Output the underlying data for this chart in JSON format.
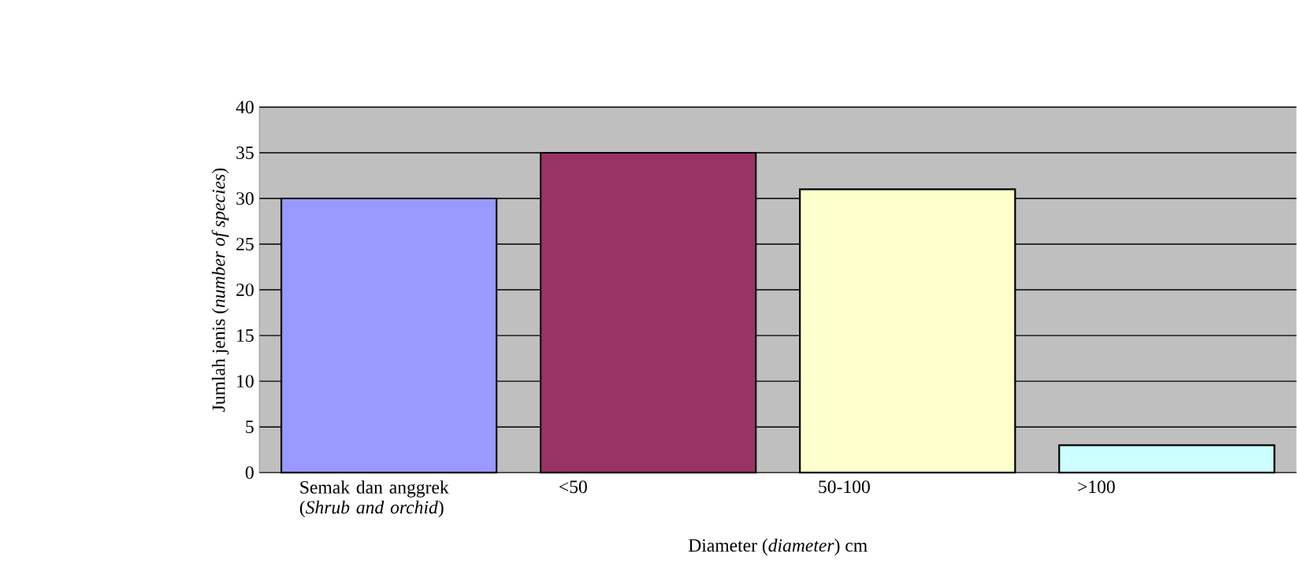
{
  "chart_data": {
    "type": "bar",
    "xlabel": "Diameter (*diameter*) cm",
    "ylabel": "Jumlah jenis (*number of species*)",
    "categories": [
      "Semak dan anggrek (*Shrub and orchid*)",
      "<50",
      "50-100",
      ">100"
    ],
    "values": [
      30,
      35,
      31,
      3
    ],
    "colors": [
      "#9999ff",
      "#993366",
      "#ffffcc",
      "#ccffff"
    ],
    "ylim": [
      0,
      40
    ],
    "yticks": [
      0,
      5,
      10,
      15,
      20,
      25,
      30,
      35,
      40
    ],
    "grid": "y"
  }
}
